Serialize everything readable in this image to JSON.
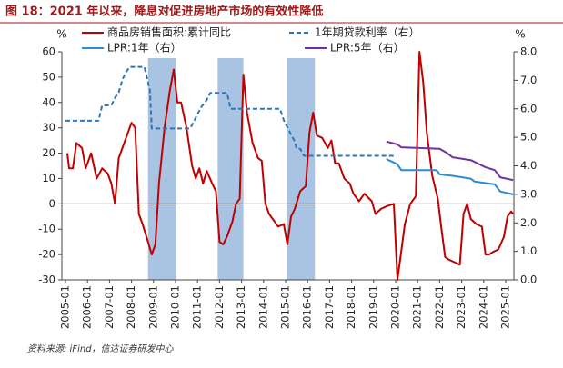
{
  "chart_data": {
    "type": "line",
    "title": "图 18：2021 年以来，降息对促进房地产市场的有效性降低",
    "source": "资料来源: iFind，信达证券研发中心",
    "y_unit": "%",
    "y2_unit": "%",
    "ylim": [
      -30,
      60
    ],
    "yticks": [
      -30,
      -20,
      -10,
      0,
      10,
      20,
      30,
      40,
      50,
      60
    ],
    "y2lim": [
      0,
      8
    ],
    "y2ticks": [
      {
        "value": 0,
        "label": "0.0"
      },
      {
        "value": 1,
        "label": "1.0"
      },
      {
        "value": 2,
        "label": "2.0"
      },
      {
        "value": 3,
        "label": "3.0"
      },
      {
        "value": 4,
        "label": "4.0"
      },
      {
        "value": 5,
        "label": "5.0"
      },
      {
        "value": 6,
        "label": "6.0"
      },
      {
        "value": 7,
        "label": "7.0"
      },
      {
        "value": 8,
        "label": "8.0"
      }
    ],
    "xticks": [
      "2005-01",
      "2006-01",
      "2007-01",
      "2008-01",
      "2009-01",
      "2010-01",
      "2011-01",
      "2012-01",
      "2013-01",
      "2014-01",
      "2015-01",
      "2016-01",
      "2017-01",
      "2018-01",
      "2019-01",
      "2020-01",
      "2021-01",
      "2022-01",
      "2023-01",
      "2024-01",
      "2025-01"
    ],
    "shaded_periods": [
      [
        "2008-10",
        "2010-01"
      ],
      [
        "2011-12",
        "2013-02"
      ],
      [
        "2015-02",
        "2016-05"
      ]
    ],
    "shade_color": "#a9c4e2",
    "series": [
      {
        "name": "商品房销售面积:累计同比",
        "color": "#c00000",
        "dash": false,
        "x": [
          "2005-02",
          "2005-03",
          "2005-05",
          "2005-07",
          "2005-10",
          "2005-12",
          "2006-03",
          "2006-06",
          "2006-09",
          "2006-12",
          "2007-02",
          "2007-04",
          "2007-06",
          "2007-08",
          "2007-11",
          "2008-01",
          "2008-03",
          "2008-05",
          "2008-07",
          "2008-10",
          "2008-12",
          "2009-02",
          "2009-04",
          "2009-07",
          "2009-10",
          "2009-12",
          "2010-02",
          "2010-04",
          "2010-07",
          "2010-10",
          "2010-12",
          "2011-02",
          "2011-04",
          "2011-06",
          "2011-09",
          "2011-11",
          "2012-01",
          "2012-03",
          "2012-05",
          "2012-08",
          "2012-10",
          "2012-12",
          "2013-02",
          "2013-04",
          "2013-07",
          "2013-10",
          "2013-12",
          "2014-02",
          "2014-04",
          "2014-06",
          "2014-09",
          "2014-12",
          "2015-02",
          "2015-04",
          "2015-06",
          "2015-09",
          "2015-12",
          "2016-02",
          "2016-04",
          "2016-06",
          "2016-09",
          "2016-12",
          "2017-02",
          "2017-04",
          "2017-06",
          "2017-09",
          "2017-12",
          "2018-02",
          "2018-05",
          "2018-08",
          "2018-12",
          "2019-02",
          "2019-05",
          "2019-08",
          "2019-12",
          "2020-02",
          "2020-04",
          "2020-06",
          "2020-09",
          "2020-12",
          "2021-02",
          "2021-04",
          "2021-06",
          "2021-09",
          "2021-12",
          "2022-02",
          "2022-04",
          "2022-06",
          "2022-09",
          "2022-12",
          "2023-02",
          "2023-04",
          "2023-06",
          "2023-09",
          "2023-12",
          "2024-02",
          "2024-04",
          "2024-06",
          "2024-09",
          "2024-12",
          "2025-02",
          "2025-04",
          "2025-05"
        ],
        "values": [
          20,
          14,
          14,
          24,
          22,
          14,
          20,
          10,
          14,
          12,
          8,
          0,
          18,
          22,
          28,
          32,
          30,
          -4,
          -8,
          -15,
          -20,
          -16,
          8,
          30,
          45,
          53,
          40,
          40,
          30,
          15,
          10,
          14,
          8,
          13,
          8,
          5,
          -15,
          -16,
          -13,
          -7,
          0,
          2,
          51,
          36,
          24,
          18,
          17,
          0,
          -4,
          -6,
          -9,
          -8,
          -16,
          -5,
          -2,
          5,
          7,
          28,
          36,
          27,
          26,
          22,
          25,
          16,
          16,
          10,
          8,
          4,
          1,
          4,
          1,
          -4,
          -2,
          -1,
          0,
          -30,
          -19,
          -8,
          0,
          3,
          60,
          48,
          28,
          11,
          2,
          -10,
          -21,
          -22,
          -23,
          -24,
          -4,
          0,
          -6,
          -8,
          -9,
          -20,
          -20,
          -19,
          -18,
          -13,
          -5,
          -3,
          -4
        ]
      },
      {
        "name": "1年期贷款利率（右）",
        "color": "#2e75b6",
        "dash": true,
        "axis": "y2",
        "x": [
          "2005-01",
          "2006-07",
          "2006-09",
          "2007-02",
          "2007-04",
          "2007-06",
          "2007-08",
          "2007-10",
          "2007-12",
          "2008-08",
          "2008-10",
          "2008-11",
          "2008-12",
          "2010-09",
          "2010-11",
          "2011-01",
          "2011-03",
          "2011-06",
          "2011-08",
          "2012-05",
          "2012-06",
          "2012-07",
          "2014-10",
          "2014-12",
          "2015-02",
          "2015-04",
          "2015-06",
          "2015-07",
          "2015-09",
          "2015-11",
          "2019-12"
        ],
        "values": [
          5.58,
          5.58,
          6.12,
          6.12,
          6.39,
          6.57,
          7.02,
          7.29,
          7.47,
          7.47,
          6.93,
          6.66,
          5.31,
          5.31,
          5.56,
          5.81,
          6.06,
          6.31,
          6.56,
          6.56,
          6.31,
          6.0,
          6.0,
          5.6,
          5.35,
          5.1,
          4.85,
          4.6,
          4.6,
          4.35,
          4.35
        ]
      },
      {
        "name": "LPR:1年（右）",
        "color": "#2e8bd0",
        "dash": false,
        "axis": "y2",
        "x": [
          "2019-08",
          "2019-09",
          "2019-11",
          "2020-02",
          "2020-04",
          "2021-11",
          "2021-12",
          "2022-01",
          "2022-08",
          "2023-06",
          "2023-08",
          "2024-07",
          "2024-10",
          "2025-05"
        ],
        "values": [
          4.25,
          4.2,
          4.15,
          4.05,
          3.85,
          3.85,
          3.8,
          3.7,
          3.65,
          3.55,
          3.45,
          3.35,
          3.1,
          3.0
        ]
      },
      {
        "name": "LPR:5年（右）",
        "color": "#7030a0",
        "dash": false,
        "axis": "y2",
        "x": [
          "2019-08",
          "2019-11",
          "2020-02",
          "2020-04",
          "2022-01",
          "2022-05",
          "2022-08",
          "2023-06",
          "2024-02",
          "2024-07",
          "2024-10",
          "2025-05"
        ],
        "values": [
          4.85,
          4.8,
          4.75,
          4.65,
          4.6,
          4.45,
          4.3,
          4.2,
          3.95,
          3.85,
          3.6,
          3.5
        ]
      }
    ]
  }
}
